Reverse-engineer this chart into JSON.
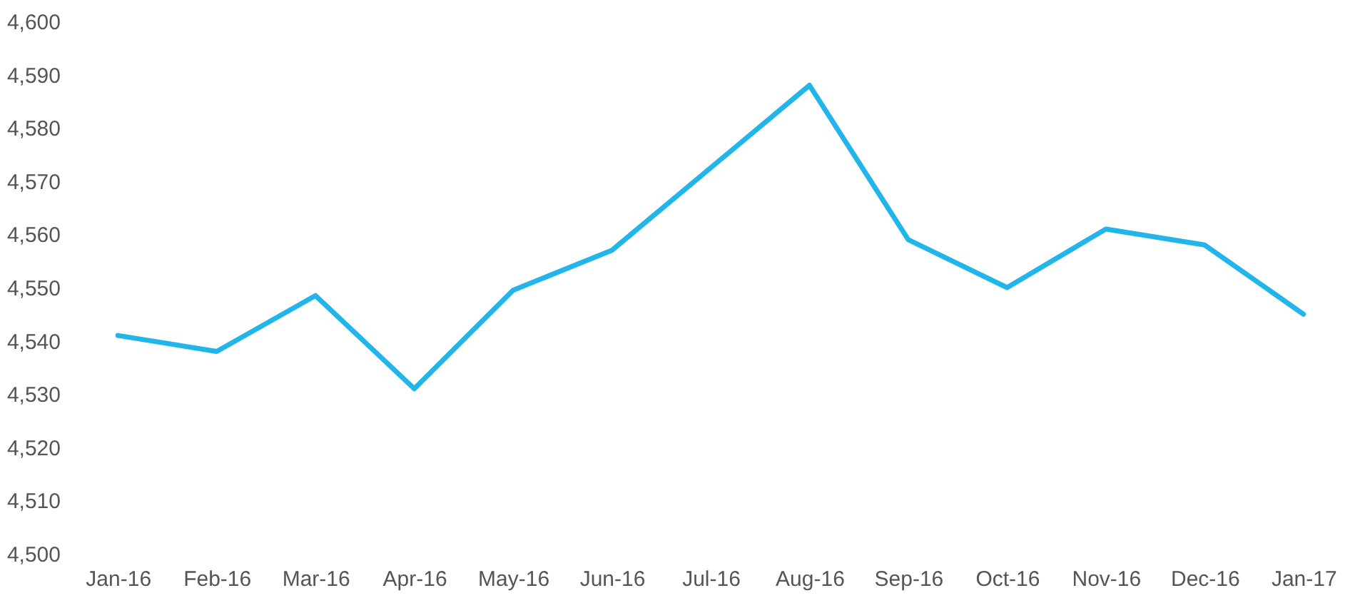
{
  "chart_data": {
    "type": "line",
    "categories": [
      "Jan-16",
      "Feb-16",
      "Mar-16",
      "Apr-16",
      "May-16",
      "Jun-16",
      "Jul-16",
      "Aug-16",
      "Sep-16",
      "Oct-16",
      "Nov-16",
      "Dec-16",
      "Jan-17"
    ],
    "series": [
      {
        "color": "#22b5ea",
        "values": [
          4541,
          4538,
          4548.5,
          4531,
          4549.5,
          4557,
          4572.5,
          4588,
          4559,
          4550,
          4561,
          4558,
          4545
        ]
      }
    ],
    "ylim": [
      4500,
      4600
    ],
    "yticks": [
      {
        "value": 4500,
        "label": "4,500"
      },
      {
        "value": 4510,
        "label": "4,510"
      },
      {
        "value": 4520,
        "label": "4,520"
      },
      {
        "value": 4530,
        "label": "4,530"
      },
      {
        "value": 4540,
        "label": "4,540"
      },
      {
        "value": 4550,
        "label": "4,550"
      },
      {
        "value": 4560,
        "label": "4,560"
      },
      {
        "value": 4570,
        "label": "4,570"
      },
      {
        "value": 4580,
        "label": "4,580"
      },
      {
        "value": 4590,
        "label": "4,590"
      },
      {
        "value": 4600,
        "label": "4,600"
      }
    ],
    "grid": false,
    "legend": false,
    "marker": "none",
    "line_style": "solid"
  }
}
